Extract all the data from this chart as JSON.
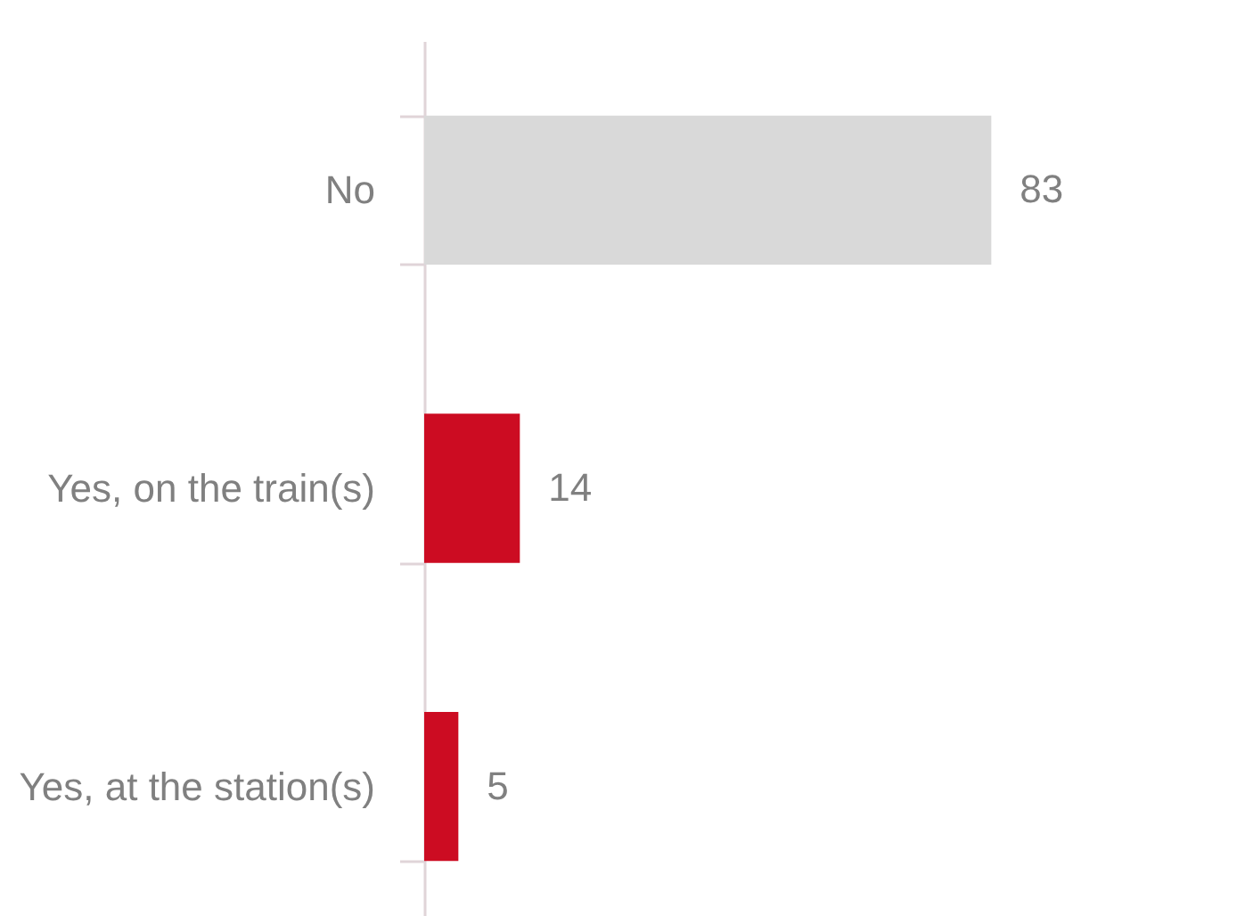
{
  "chart_data": {
    "type": "bar",
    "orientation": "horizontal",
    "categories": [
      "No",
      "Yes, on the train(s)",
      "Yes, at the station(s)"
    ],
    "values": [
      83,
      14,
      5
    ],
    "colors": [
      "#d9d9d9",
      "#cc0c22",
      "#cc0c22"
    ],
    "data_labels": true,
    "tick_labels": "y"
  }
}
